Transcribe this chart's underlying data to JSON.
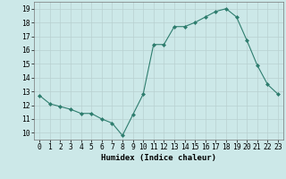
{
  "x": [
    0,
    1,
    2,
    3,
    4,
    5,
    6,
    7,
    8,
    9,
    10,
    11,
    12,
    13,
    14,
    15,
    16,
    17,
    18,
    19,
    20,
    21,
    22,
    23
  ],
  "y": [
    12.7,
    12.1,
    11.9,
    11.7,
    11.4,
    11.4,
    11.0,
    10.7,
    9.8,
    11.3,
    12.8,
    16.4,
    16.4,
    17.7,
    17.7,
    18.0,
    18.4,
    18.8,
    19.0,
    18.4,
    16.7,
    14.9,
    13.5,
    12.8
  ],
  "line_color": "#2e7d6e",
  "marker": "D",
  "marker_size": 2.0,
  "bg_color": "#cce8e8",
  "grid_color": "#b8d0d0",
  "xlabel": "Humidex (Indice chaleur)",
  "ylim": [
    9.5,
    19.5
  ],
  "xlim": [
    -0.5,
    23.5
  ],
  "yticks": [
    10,
    11,
    12,
    13,
    14,
    15,
    16,
    17,
    18,
    19
  ],
  "xticks": [
    0,
    1,
    2,
    3,
    4,
    5,
    6,
    7,
    8,
    9,
    10,
    11,
    12,
    13,
    14,
    15,
    16,
    17,
    18,
    19,
    20,
    21,
    22,
    23
  ],
  "label_fontsize": 6.5,
  "tick_fontsize": 5.8,
  "linewidth": 0.8
}
